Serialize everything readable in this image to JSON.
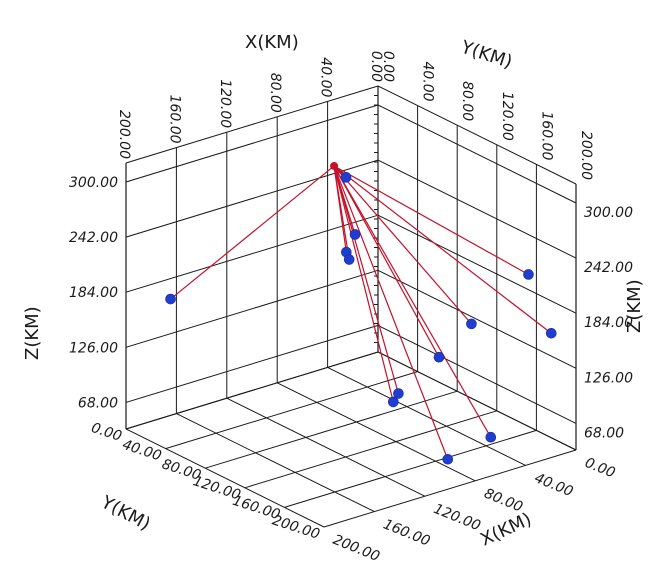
{
  "chart_data": {
    "type": "scatter",
    "title": "",
    "axes": {
      "x": {
        "label": "X(KM)",
        "range": [
          0,
          200
        ],
        "ticks_back": [
          "0.00",
          "40.00",
          "80.00",
          "120.00",
          "160.00",
          "200.00"
        ],
        "ticks_front": [
          "0.00",
          "40.00",
          "80.00",
          "120.00",
          "160.00",
          "200.00"
        ]
      },
      "y": {
        "label": "Y(KM)",
        "range": [
          0,
          200
        ],
        "ticks_back": [
          "0.00",
          "40.00",
          "80.00",
          "120.00",
          "160.00",
          "200.00"
        ],
        "ticks_front": [
          "0.00",
          "40.00",
          "80.00",
          "120.00",
          "160.00",
          "200.00"
        ]
      },
      "z": {
        "label": "Z(KM)",
        "range": [
          40,
          320
        ],
        "ticks": [
          "68.00",
          "126.00",
          "184.00",
          "242.00",
          "300.00"
        ]
      }
    },
    "grid": true,
    "source_point": {
      "x": 82,
      "y": 60,
      "z": 300
    },
    "points": [
      {
        "x": 200,
        "y": 45,
        "z": 200
      },
      {
        "x": 85,
        "y": 85,
        "z": 242
      },
      {
        "x": 88,
        "y": 80,
        "z": 222
      },
      {
        "x": 92,
        "y": 88,
        "z": 220
      },
      {
        "x": 45,
        "y": 25,
        "z": 255
      },
      {
        "x": 0,
        "y": 152,
        "z": 200
      },
      {
        "x": 28,
        "y": 130,
        "z": 148
      },
      {
        "x": 0,
        "y": 175,
        "z": 150
      },
      {
        "x": 60,
        "y": 138,
        "z": 130
      },
      {
        "x": 82,
        "y": 125,
        "z": 94
      },
      {
        "x": 90,
        "y": 130,
        "z": 91
      },
      {
        "x": 48,
        "y": 175,
        "z": 60
      },
      {
        "x": 90,
        "y": 185,
        "z": 59
      }
    ]
  }
}
